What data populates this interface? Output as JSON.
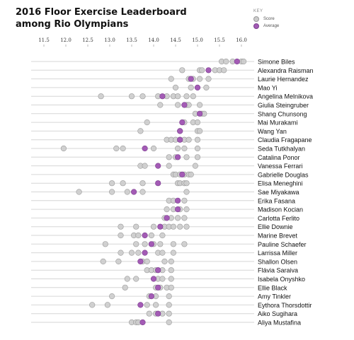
{
  "title_line1": "2016 Floor Exercise Leaderboard",
  "title_line2": "among Rio Olympians",
  "legend": {
    "title": "KEY",
    "items": [
      {
        "label": "Score",
        "color": "#cccccc",
        "stroke": "#999999"
      },
      {
        "label": "Average",
        "color": "#a35bb5",
        "stroke": "#7d3f8f"
      }
    ]
  },
  "chart_data": {
    "type": "scatter",
    "title": "2016 Floor Exercise Leaderboard among Rio Olympians",
    "x_ticks": [
      11.5,
      12.0,
      12.5,
      13.0,
      13.5,
      14.0,
      14.5,
      15.0,
      15.5,
      16.0
    ],
    "x_tick_labels": [
      "11.5",
      "12.0",
      "12.5",
      "13.0",
      "13.5",
      "14.0",
      "14.5",
      "15.0",
      "15.5",
      "16.0"
    ],
    "xlim": [
      11.5,
      16.0
    ],
    "grid": true,
    "legend_position": "top-right",
    "score_color": "#cccccc",
    "average_color": "#a35bb5",
    "athletes": [
      {
        "name": "Simone Biles",
        "scores": [
          15.55,
          15.65,
          15.8,
          16.0,
          16.05
        ],
        "average": 15.9
      },
      {
        "name": "Alexandra Raisman",
        "scores": [
          14.65,
          15.05,
          15.1,
          15.4,
          15.5,
          15.6
        ],
        "average": 15.25
      },
      {
        "name": "Laurie Hernandez",
        "scores": [
          14.4,
          14.8,
          14.9,
          15.05,
          15.25
        ],
        "average": 14.85
      },
      {
        "name": "Mao Yi",
        "scores": [
          14.5,
          14.85,
          15.2
        ],
        "average": 15.0
      },
      {
        "name": "Angelina Melnikova",
        "scores": [
          12.8,
          13.5,
          13.75,
          14.1,
          14.3,
          14.45,
          14.55,
          14.75,
          14.9
        ],
        "average": 14.2
      },
      {
        "name": "Giulia Steingruber",
        "scores": [
          14.15,
          14.55,
          14.75,
          14.8,
          15.05
        ],
        "average": 14.7
      },
      {
        "name": "Shang Chunsong",
        "scores": [
          14.95,
          15.1,
          15.15
        ],
        "average": 15.05
      },
      {
        "name": "Mai Murakami",
        "scores": [
          13.85,
          14.7,
          14.9,
          15.0
        ],
        "average": 14.65
      },
      {
        "name": "Wang Yan",
        "scores": [
          13.7,
          14.6,
          15.0,
          15.05
        ],
        "average": 14.6
      },
      {
        "name": "Claudia Fragapane",
        "scores": [
          14.3,
          14.4,
          14.5,
          14.6,
          14.7,
          14.8,
          15.0
        ],
        "average": 14.6
      },
      {
        "name": "Seda Tutkhalyan",
        "scores": [
          11.95,
          13.15,
          13.3,
          14.0,
          14.55,
          14.7,
          15.0
        ],
        "average": 13.8
      },
      {
        "name": "Catalina Ponor",
        "scores": [
          14.35,
          14.5,
          14.75,
          15.0
        ],
        "average": 14.55
      },
      {
        "name": "Vanessa Ferrari",
        "scores": [
          13.7,
          13.8,
          14.35,
          14.95
        ],
        "average": 14.1
      },
      {
        "name": "Gabrielle Douglas",
        "scores": [
          14.45,
          14.5,
          14.6,
          14.7,
          14.8,
          14.85
        ],
        "average": 14.65
      },
      {
        "name": "Elisa Meneghini",
        "scores": [
          13.05,
          13.3,
          13.75,
          14.55,
          14.6,
          14.7,
          14.75
        ],
        "average": 14.1
      },
      {
        "name": "Sae Miyakawa",
        "scores": [
          12.3,
          13.05,
          13.4,
          13.75,
          14.75
        ],
        "average": 13.55
      },
      {
        "name": "Erika Fasana",
        "scores": [
          14.35,
          14.45,
          14.7
        ],
        "average": 14.55
      },
      {
        "name": "Madison Kocian",
        "scores": [
          14.3,
          14.45,
          14.6,
          14.75
        ],
        "average": 14.55
      },
      {
        "name": "Carlotta Ferlito",
        "scores": [
          14.25,
          14.4,
          14.55,
          14.7
        ],
        "average": 14.3
      },
      {
        "name": "Ellie Downie",
        "scores": [
          13.25,
          13.6,
          14.0,
          14.25,
          14.35,
          14.45,
          14.6,
          14.75
        ],
        "average": 14.15
      },
      {
        "name": "Marine Brevet",
        "scores": [
          13.25,
          13.55,
          13.65,
          13.95,
          14.2
        ],
        "average": 13.8
      },
      {
        "name": "Pauline Schaefer",
        "scores": [
          12.9,
          13.6,
          13.8,
          14.0,
          14.15,
          14.45,
          14.7
        ],
        "average": 13.95
      },
      {
        "name": "Larrissa Miller",
        "scores": [
          13.25,
          13.5,
          13.65,
          14.1,
          14.2,
          14.45
        ],
        "average": 13.8
      },
      {
        "name": "Shallon Olsen",
        "scores": [
          12.85,
          13.2,
          13.75,
          13.85,
          14.25,
          14.4
        ],
        "average": 13.7
      },
      {
        "name": "Flávia Saraiva",
        "scores": [
          13.85,
          13.95,
          14.05,
          14.1,
          14.2,
          14.4
        ],
        "average": 14.1
      },
      {
        "name": "Isabela Onyshko",
        "scores": [
          13.4,
          13.6,
          14.1,
          14.2,
          14.4
        ],
        "average": 14.0
      },
      {
        "name": "Ellie Black",
        "scores": [
          13.35,
          14.05,
          14.15,
          14.3,
          14.4
        ],
        "average": 14.1
      },
      {
        "name": "Amy Tinkler",
        "scores": [
          13.05,
          13.9,
          14.05,
          14.35
        ],
        "average": 13.95
      },
      {
        "name": "Eythora Thorsdottir",
        "scores": [
          12.6,
          12.95,
          13.85,
          14.05,
          14.35
        ],
        "average": 13.7
      },
      {
        "name": "Aiko Sugihara",
        "scores": [
          13.9,
          14.05,
          14.2,
          14.35
        ],
        "average": 14.1
      },
      {
        "name": "Aliya Mustafina",
        "scores": [
          13.5,
          13.6,
          13.65,
          14.35
        ],
        "average": 13.75
      }
    ]
  }
}
